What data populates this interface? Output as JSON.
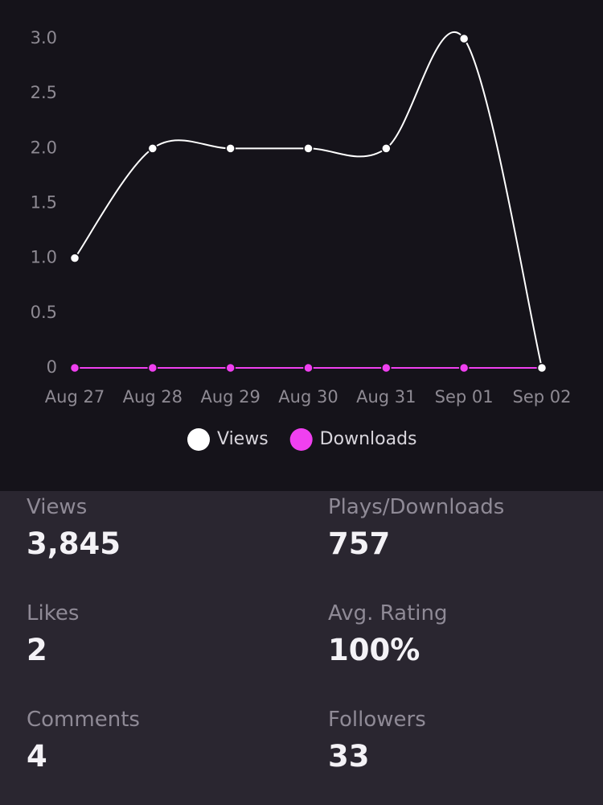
{
  "chart_data": {
    "type": "line",
    "categories": [
      "Aug 27",
      "Aug 28",
      "Aug 29",
      "Aug 30",
      "Aug 31",
      "Sep 01",
      "Sep 02"
    ],
    "series": [
      {
        "name": "Views",
        "color": "#ffffff",
        "values": [
          1,
          2,
          2,
          2,
          2,
          3,
          0
        ]
      },
      {
        "name": "Downloads",
        "color": "#f040f0",
        "values": [
          0,
          0,
          0,
          0,
          0,
          0,
          0
        ]
      }
    ],
    "ylim": [
      0,
      3
    ],
    "yticks": [
      0,
      0.5,
      {
        "value": 1,
        "label": "1.0"
      },
      1.5,
      {
        "value": 2,
        "label": "2.0"
      },
      2.5,
      {
        "value": 3,
        "label": "3.0"
      }
    ],
    "grid": false,
    "legend": "bottom"
  },
  "stats": [
    {
      "label": "Views",
      "value": "3,845"
    },
    {
      "label": "Plays/Downloads",
      "value": "757"
    },
    {
      "label": "Likes",
      "value": "2"
    },
    {
      "label": "Avg. Rating",
      "value": "100%"
    },
    {
      "label": "Comments",
      "value": "4"
    },
    {
      "label": "Followers",
      "value": "33"
    }
  ]
}
